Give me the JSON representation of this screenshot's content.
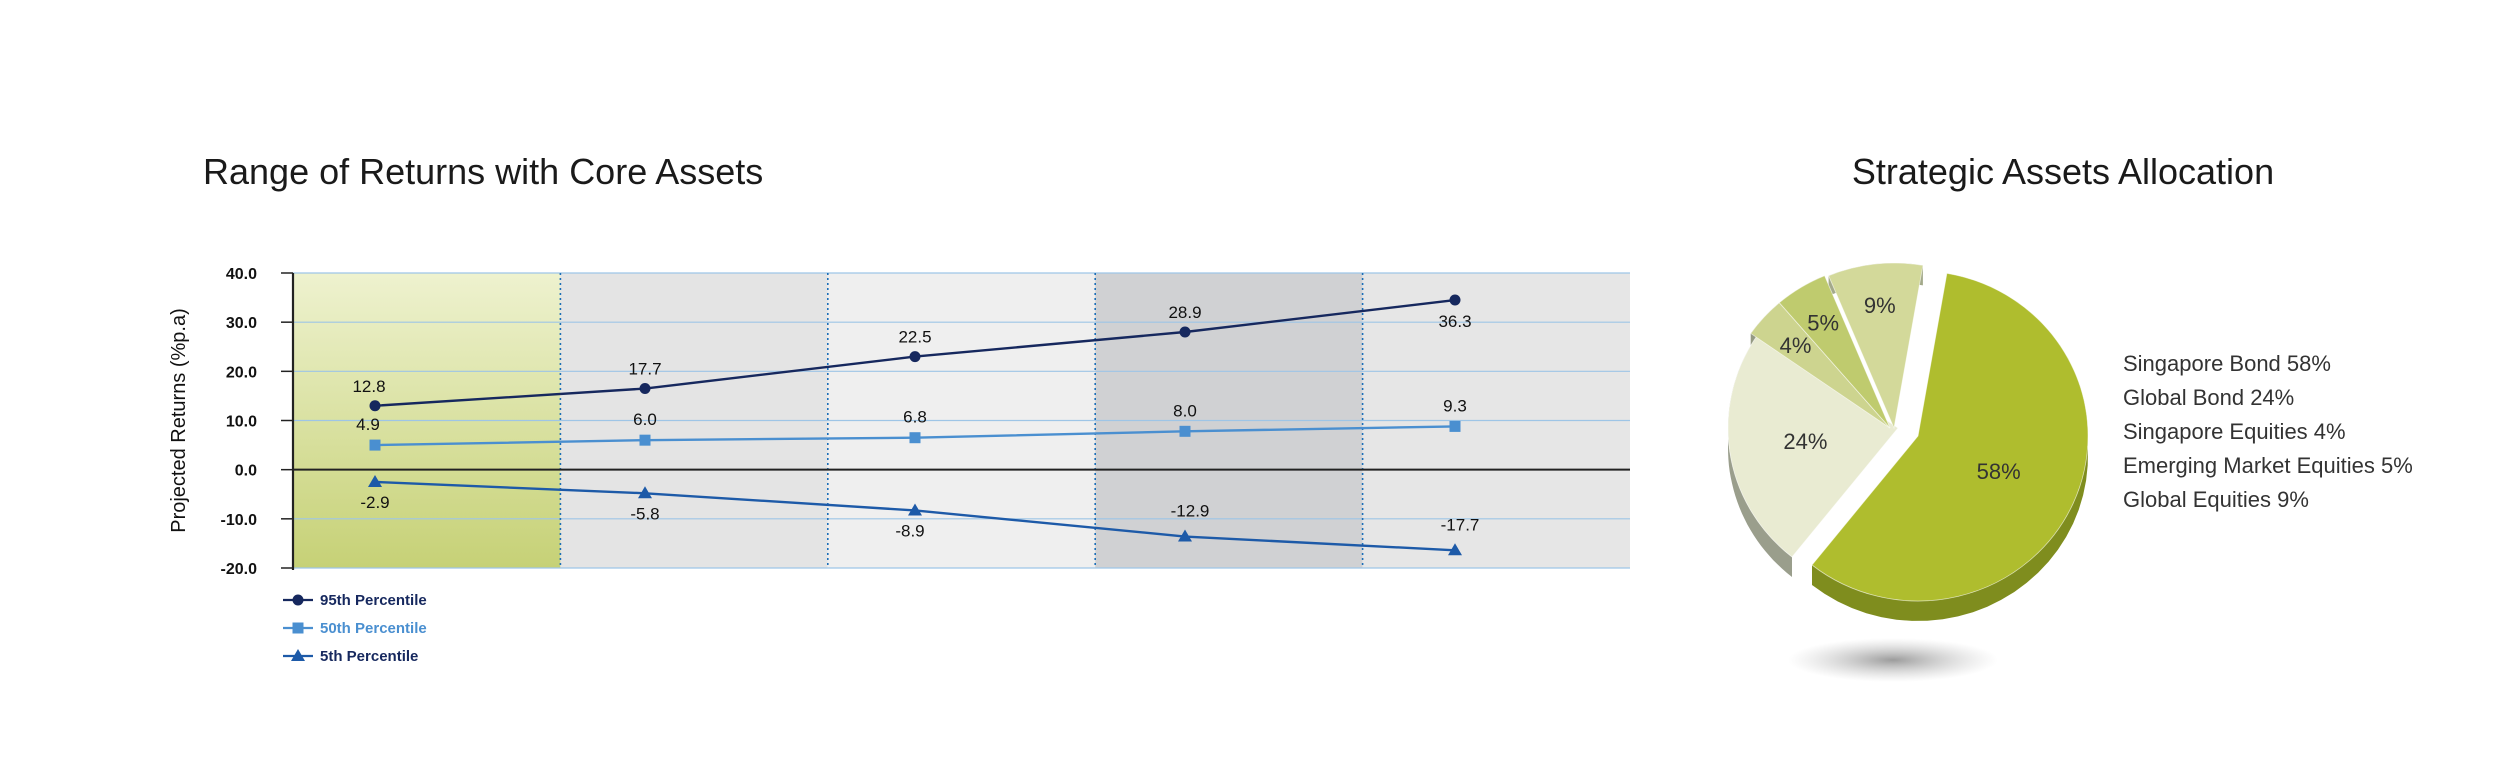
{
  "colors": {
    "p95": "#16285e",
    "p50": "#4a8fd0",
    "p5": "#1d5aa8",
    "gridline": "#9ec5e6",
    "axis": "#222222",
    "divider": "#1d6fb8",
    "bands": [
      "#dfe7ae",
      "#e4e4e4",
      "#efefef",
      "#d0d1d3",
      "#e6e6e6"
    ],
    "pie_slices": [
      "#afbd2e",
      "#e9ebd2",
      "#cdd48f",
      "#bfcb6e",
      "#d3d99a"
    ],
    "pie_side": [
      "#7f8d1e",
      "#9a9e8c",
      "#959a82",
      "#a7ad8e",
      "#a3a98a"
    ]
  },
  "chart_data": [
    {
      "type": "line",
      "title": "Range of Returns with Core Assets",
      "xlabel": "",
      "ylabel": "Projected Returns (%p.a)",
      "ylim": [
        -20,
        40
      ],
      "yticks": [
        "40.0",
        "30.0",
        "20.0",
        "10.0",
        "0.0",
        "-10.0",
        "-20.0"
      ],
      "ytick_values": [
        40,
        30,
        20,
        10,
        0,
        -10,
        -20
      ],
      "x": [
        1,
        2,
        3,
        4,
        5
      ],
      "grid": true,
      "legend_position": "bottom-left",
      "series": [
        {
          "name": "95th Percentile",
          "marker": "circle",
          "values": [
            12.8,
            17.7,
            22.5,
            28.9,
            36.3
          ],
          "labels": [
            "12.8",
            "17.7",
            "22.5",
            "28.9",
            "36.3"
          ],
          "plotted": [
            13,
            16.5,
            23,
            28,
            34.5
          ]
        },
        {
          "name": "50th Percentile",
          "marker": "square",
          "values": [
            4.9,
            6.0,
            6.8,
            8.0,
            9.3
          ],
          "labels": [
            "4.9",
            "6.0",
            "6.8",
            "8.0",
            "9.3"
          ],
          "plotted": [
            5,
            6,
            6.5,
            7.8,
            8.8
          ]
        },
        {
          "name": "5th Percentile",
          "marker": "triangle",
          "values": [
            -2.9,
            -5.8,
            -8.9,
            -12.9,
            -17.7
          ],
          "labels": [
            "-2.9",
            "-5.8",
            "-8.9",
            "-12.9",
            "-17.7"
          ],
          "plotted": [
            -2.5,
            -4.8,
            -8.3,
            -13.6,
            -16.4
          ]
        }
      ]
    },
    {
      "type": "pie",
      "title": "Strategic Assets Allocation",
      "slices": [
        {
          "name": "Singapore Bond",
          "value": 58,
          "label": "58%",
          "legend": "Singapore Bond 58%"
        },
        {
          "name": "Global Bond",
          "value": 24,
          "label": "24%",
          "legend": "Global Bond 24%"
        },
        {
          "name": "Singapore Equities",
          "value": 4,
          "label": "4%",
          "legend": "Singapore Equities 4%"
        },
        {
          "name": "Emerging Market Equities",
          "value": 5,
          "label": "5%",
          "legend": "Emerging Market Equities 5%"
        },
        {
          "name": "Global Equities",
          "value": 9,
          "label": "9%",
          "legend": "Global Equities 9%"
        }
      ],
      "legend_position": "right"
    }
  ]
}
